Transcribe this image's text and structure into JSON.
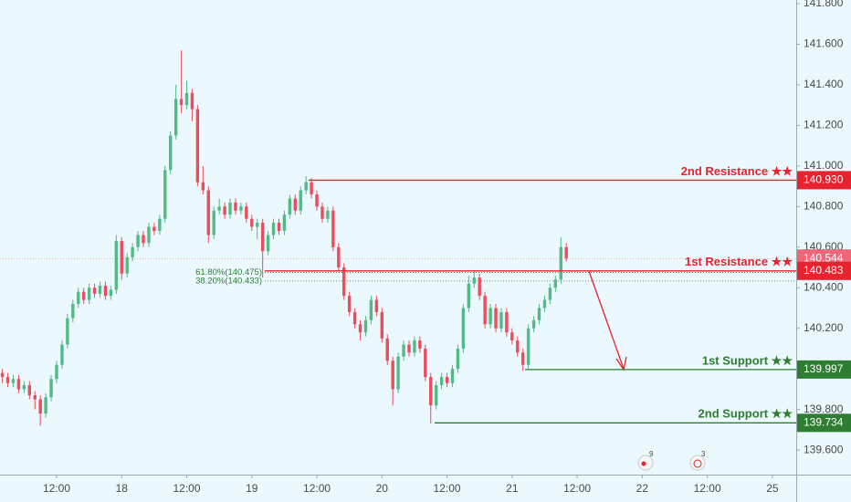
{
  "chart_data": {
    "type": "candlestick",
    "x": [
      -10,
      -9,
      -8,
      -7,
      -6,
      -5,
      -4,
      -3,
      -2,
      -1,
      0,
      1,
      2,
      3,
      4,
      5,
      6,
      7,
      8,
      9,
      10,
      11,
      12,
      13,
      14,
      15,
      16,
      17,
      18,
      19,
      20,
      21,
      22,
      23,
      24,
      25,
      26,
      27,
      28,
      29,
      30,
      31,
      32,
      33,
      34,
      35,
      36,
      37,
      38,
      39,
      40,
      41,
      42,
      43,
      44,
      45,
      46,
      47,
      48,
      49,
      50,
      51,
      52,
      53,
      54,
      55,
      56,
      57,
      58,
      59,
      60,
      61,
      62,
      63,
      64,
      65,
      66,
      67,
      68,
      69,
      70,
      71,
      72,
      73,
      74,
      75,
      76,
      77,
      78,
      79,
      80,
      81,
      82,
      83,
      84,
      85,
      86,
      87,
      88,
      89,
      90,
      91,
      92,
      93,
      94
    ],
    "ohlc": [
      [
        139.98,
        140.0,
        139.93,
        139.96
      ],
      [
        139.96,
        139.98,
        139.91,
        139.93
      ],
      [
        139.93,
        139.97,
        139.91,
        139.95
      ],
      [
        139.95,
        139.97,
        139.88,
        139.9
      ],
      [
        139.9,
        139.94,
        139.88,
        139.92
      ],
      [
        139.92,
        139.94,
        139.85,
        139.87
      ],
      [
        139.87,
        139.89,
        139.8,
        139.85
      ],
      [
        139.85,
        139.87,
        139.72,
        139.78
      ],
      [
        139.78,
        139.88,
        139.76,
        139.86
      ],
      [
        139.86,
        139.97,
        139.84,
        139.95
      ],
      [
        139.95,
        140.04,
        139.93,
        140.02
      ],
      [
        140.02,
        140.14,
        140.0,
        140.12
      ],
      [
        140.12,
        140.27,
        140.1,
        140.25
      ],
      [
        140.25,
        140.34,
        140.23,
        140.32
      ],
      [
        140.32,
        140.4,
        140.3,
        140.38
      ],
      [
        140.38,
        140.4,
        140.32,
        140.34
      ],
      [
        140.34,
        140.42,
        140.32,
        140.4
      ],
      [
        140.4,
        140.42,
        140.35,
        140.37
      ],
      [
        140.37,
        140.43,
        140.35,
        140.41
      ],
      [
        140.41,
        140.43,
        140.34,
        140.36
      ],
      [
        140.36,
        140.41,
        140.34,
        140.39
      ],
      [
        140.39,
        140.66,
        140.37,
        140.63
      ],
      [
        140.63,
        140.65,
        140.44,
        140.47
      ],
      [
        140.47,
        140.57,
        140.45,
        140.55
      ],
      [
        140.55,
        140.62,
        140.53,
        140.6
      ],
      [
        140.6,
        140.68,
        140.58,
        140.66
      ],
      [
        140.66,
        140.68,
        140.6,
        140.62
      ],
      [
        140.62,
        140.72,
        140.6,
        140.7
      ],
      [
        140.7,
        140.72,
        140.66,
        140.68
      ],
      [
        140.68,
        140.76,
        140.66,
        140.74
      ],
      [
        140.74,
        141.0,
        140.72,
        140.98
      ],
      [
        140.98,
        141.17,
        140.96,
        141.15
      ],
      [
        141.15,
        141.4,
        141.13,
        141.33
      ],
      [
        141.33,
        141.57,
        141.26,
        141.3
      ],
      [
        141.3,
        141.42,
        141.28,
        141.36
      ],
      [
        141.36,
        141.38,
        141.22,
        141.28
      ],
      [
        141.28,
        141.3,
        140.9,
        140.92
      ],
      [
        140.92,
        141.0,
        140.86,
        140.88
      ],
      [
        140.88,
        140.9,
        140.62,
        140.66
      ],
      [
        140.66,
        140.8,
        140.64,
        140.78
      ],
      [
        140.78,
        140.84,
        140.76,
        140.8
      ],
      [
        140.8,
        140.82,
        140.74,
        140.76
      ],
      [
        140.76,
        140.84,
        140.74,
        140.82
      ],
      [
        140.82,
        140.84,
        140.76,
        140.78
      ],
      [
        140.78,
        140.82,
        140.76,
        140.8
      ],
      [
        140.8,
        140.82,
        140.72,
        140.74
      ],
      [
        140.74,
        140.76,
        140.68,
        140.7
      ],
      [
        140.7,
        140.74,
        140.64,
        140.72
      ],
      [
        140.72,
        140.74,
        140.45,
        140.58
      ],
      [
        140.58,
        140.68,
        140.56,
        140.66
      ],
      [
        140.66,
        140.74,
        140.64,
        140.72
      ],
      [
        140.72,
        140.74,
        140.66,
        140.68
      ],
      [
        140.68,
        140.78,
        140.66,
        140.76
      ],
      [
        140.76,
        140.86,
        140.74,
        140.84
      ],
      [
        140.84,
        140.86,
        140.76,
        140.78
      ],
      [
        140.78,
        140.9,
        140.76,
        140.88
      ],
      [
        140.88,
        140.95,
        140.86,
        140.92
      ],
      [
        140.92,
        140.94,
        140.84,
        140.86
      ],
      [
        140.86,
        140.88,
        140.78,
        140.8
      ],
      [
        140.8,
        140.82,
        140.72,
        140.74
      ],
      [
        140.74,
        140.8,
        140.72,
        140.78
      ],
      [
        140.78,
        140.8,
        140.58,
        140.6
      ],
      [
        140.6,
        140.62,
        140.48,
        140.5
      ],
      [
        140.5,
        140.52,
        140.34,
        140.36
      ],
      [
        140.36,
        140.38,
        140.26,
        140.28
      ],
      [
        140.28,
        140.3,
        140.2,
        140.22
      ],
      [
        140.22,
        140.24,
        140.14,
        140.18
      ],
      [
        140.18,
        140.26,
        140.16,
        140.24
      ],
      [
        140.24,
        140.36,
        140.22,
        140.34
      ],
      [
        140.34,
        140.36,
        140.26,
        140.28
      ],
      [
        140.28,
        140.3,
        140.13,
        140.15
      ],
      [
        140.15,
        140.17,
        140.02,
        140.04
      ],
      [
        140.04,
        140.06,
        139.82,
        139.9
      ],
      [
        139.9,
        140.08,
        139.88,
        140.06
      ],
      [
        140.06,
        140.14,
        140.04,
        140.12
      ],
      [
        140.12,
        140.14,
        140.06,
        140.08
      ],
      [
        140.08,
        140.16,
        140.06,
        140.14
      ],
      [
        140.14,
        140.16,
        140.08,
        140.1
      ],
      [
        140.1,
        140.12,
        139.94,
        139.96
      ],
      [
        139.96,
        139.98,
        139.73,
        139.82
      ],
      [
        139.82,
        139.94,
        139.8,
        139.92
      ],
      [
        139.92,
        139.98,
        139.9,
        139.96
      ],
      [
        139.96,
        139.98,
        139.91,
        139.93
      ],
      [
        139.93,
        140.02,
        139.91,
        140.0
      ],
      [
        140.0,
        140.12,
        139.98,
        140.1
      ],
      [
        140.1,
        140.32,
        140.08,
        140.3
      ],
      [
        140.3,
        140.46,
        140.28,
        140.42
      ],
      [
        140.42,
        140.48,
        140.4,
        140.45
      ],
      [
        140.45,
        140.47,
        140.34,
        140.36
      ],
      [
        140.36,
        140.38,
        140.2,
        140.22
      ],
      [
        140.22,
        140.32,
        140.2,
        140.3
      ],
      [
        140.3,
        140.32,
        140.18,
        140.2
      ],
      [
        140.2,
        140.3,
        140.18,
        140.28
      ],
      [
        140.28,
        140.3,
        140.16,
        140.18
      ],
      [
        140.18,
        140.2,
        140.12,
        140.14
      ],
      [
        140.14,
        140.16,
        140.06,
        140.08
      ],
      [
        140.08,
        140.1,
        139.99,
        140.02
      ],
      [
        140.02,
        140.22,
        140.0,
        140.2
      ],
      [
        140.2,
        140.26,
        140.18,
        140.24
      ],
      [
        140.24,
        140.32,
        140.22,
        140.3
      ],
      [
        140.3,
        140.36,
        140.28,
        140.34
      ],
      [
        140.34,
        140.42,
        140.32,
        140.4
      ],
      [
        140.4,
        140.46,
        140.38,
        140.44
      ],
      [
        140.44,
        140.65,
        140.42,
        140.6
      ],
      [
        140.6,
        140.62,
        140.53,
        140.544
      ]
    ],
    "up_color": "#53b987",
    "down_color": "#eb4d5c",
    "xlim": [
      -10.44,
      136.4
    ],
    "xticks": [
      {
        "value": 0,
        "label": "12:00"
      },
      {
        "value": 12,
        "label": "18"
      },
      {
        "value": 24,
        "label": "12:00"
      },
      {
        "value": 36,
        "label": "19"
      },
      {
        "value": 48,
        "label": "12:00"
      },
      {
        "value": 60,
        "label": "20"
      },
      {
        "value": 72,
        "label": "12:00"
      },
      {
        "value": 84,
        "label": "21"
      },
      {
        "value": 96,
        "label": "12:00"
      },
      {
        "value": 108,
        "label": "22"
      },
      {
        "value": 120,
        "label": "12:00"
      },
      {
        "value": 132,
        "label": "25"
      }
    ],
    "ylim": [
      139.479,
      141.818
    ],
    "yticks": [
      {
        "value": 141.8,
        "label": "141.800"
      },
      {
        "value": 141.6,
        "label": "141.600"
      },
      {
        "value": 141.4,
        "label": "141.400"
      },
      {
        "value": 141.2,
        "label": "141.200"
      },
      {
        "value": 141.0,
        "label": "141.000"
      },
      {
        "value": 140.8,
        "label": "140.800"
      },
      {
        "value": 140.6,
        "label": "140.600"
      },
      {
        "value": 140.4,
        "label": "140.400"
      },
      {
        "value": 140.2,
        "label": "140.200"
      },
      {
        "value": 140.0,
        "label": "140.000"
      },
      {
        "value": 139.8,
        "label": "139.800"
      },
      {
        "value": 139.6,
        "label": "139.600"
      }
    ],
    "levels": [
      {
        "label": "2nd Resistance ★★",
        "value": 140.93,
        "value_label": "140.930",
        "color": "#e8222e"
      },
      {
        "label": "1st Resistance ★★",
        "value": 140.483,
        "color": "#e8222e"
      },
      {
        "label": "1st Support ★★",
        "value": 139.997,
        "color": "#2e7d32"
      },
      {
        "label": "2nd Support ★★",
        "value": 139.734,
        "color": "#2e7d32"
      }
    ],
    "fib": [
      {
        "value": 140.475,
        "label": "61.80%(140.475)"
      },
      {
        "value": 140.433,
        "label": "38.20%(140.433)"
      }
    ],
    "last_price": {
      "value": 140.544,
      "color": "#f0677a"
    },
    "event_badges": [
      "9",
      "3"
    ]
  }
}
